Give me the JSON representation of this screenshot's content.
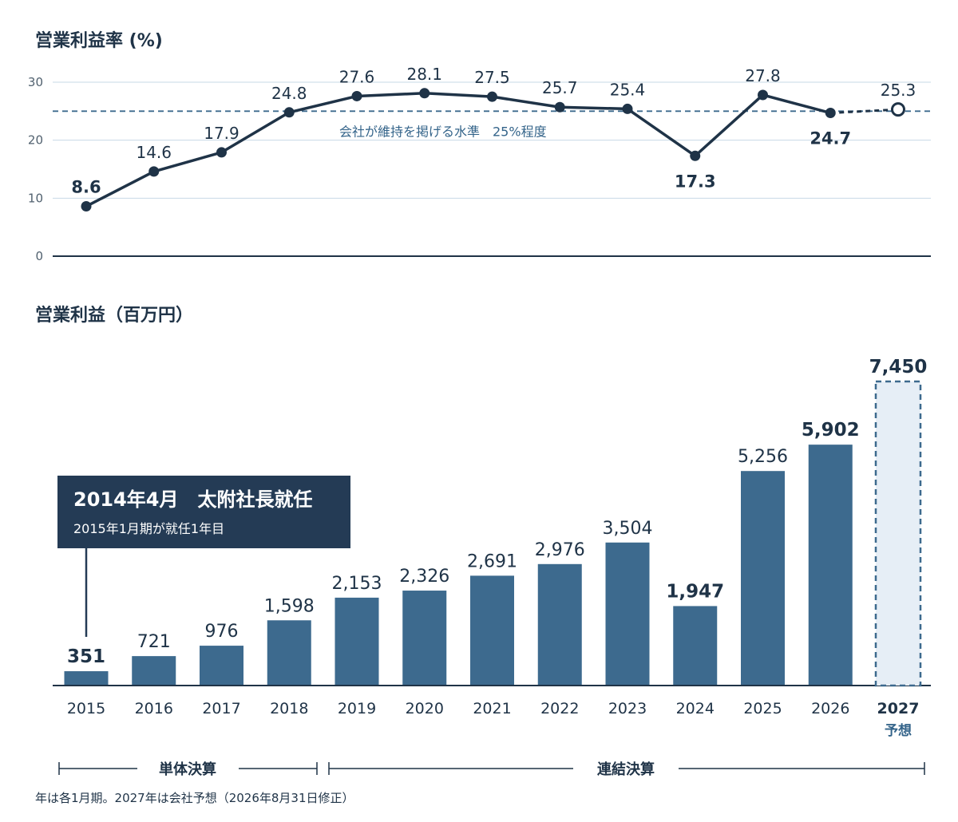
{
  "colors": {
    "bar": "#3d6a8e",
    "forecast_fill": "#e6eef6",
    "forecast_border": "#3d6a8e",
    "line": "#1f3347",
    "dashed_ref": "#3d6a8e",
    "grid": "#c7d8e6",
    "callout": "#243b55"
  },
  "chart_data": [
    {
      "type": "line",
      "title": "営業利益率 (%)",
      "y_ticks": [
        "0",
        "10",
        "20",
        "30"
      ],
      "ylim": [
        0,
        30
      ],
      "grid": true,
      "x": [
        "2015",
        "2016",
        "2017",
        "2018",
        "2019",
        "2020",
        "2021",
        "2022",
        "2023",
        "2024",
        "2025",
        "2026",
        "2027"
      ],
      "values": [
        8.6,
        14.6,
        17.9,
        24.8,
        27.6,
        28.1,
        27.5,
        25.7,
        25.4,
        17.3,
        27.8,
        24.7,
        25.3
      ],
      "labels": [
        "8.6",
        "14.6",
        "17.9",
        "24.8",
        "27.6",
        "28.1",
        "27.5",
        "25.7",
        "25.4",
        "17.3",
        "27.8",
        "24.7",
        "25.3"
      ],
      "bold_labels": [
        "2015",
        "2024",
        "2026"
      ],
      "forecast_points": [
        "2027"
      ],
      "reference_line": {
        "value": 25,
        "label": "会社が維持を掲げる水準　25%程度"
      }
    },
    {
      "type": "bar",
      "title": "営業利益（百万円）",
      "categories": [
        "2015",
        "2016",
        "2017",
        "2018",
        "2019",
        "2020",
        "2021",
        "2022",
        "2023",
        "2024",
        "2025",
        "2026",
        "2027"
      ],
      "values": [
        351,
        721,
        976,
        1598,
        2153,
        2326,
        2691,
        2976,
        3504,
        1947,
        5256,
        5902,
        7450
      ],
      "labels": [
        "351",
        "721",
        "976",
        "1,598",
        "2,153",
        "2,326",
        "2,691",
        "2,976",
        "3,504",
        "1,947",
        "5,256",
        "5,902",
        "7,450"
      ],
      "bold_labels": [
        "2015",
        "2024",
        "2026",
        "2027"
      ],
      "forecast_categories": [
        "2027"
      ],
      "forecast_sublabel": "予想"
    }
  ],
  "callout": {
    "title": "2014年4月　太附社長就任",
    "subtitle": "2015年1月期が就任1年目"
  },
  "segments": [
    {
      "label": "単体決算"
    },
    {
      "label": "連結決算"
    }
  ],
  "footnote": "年は各1月期。2027年は会社予想（2026年8月31日修正）"
}
